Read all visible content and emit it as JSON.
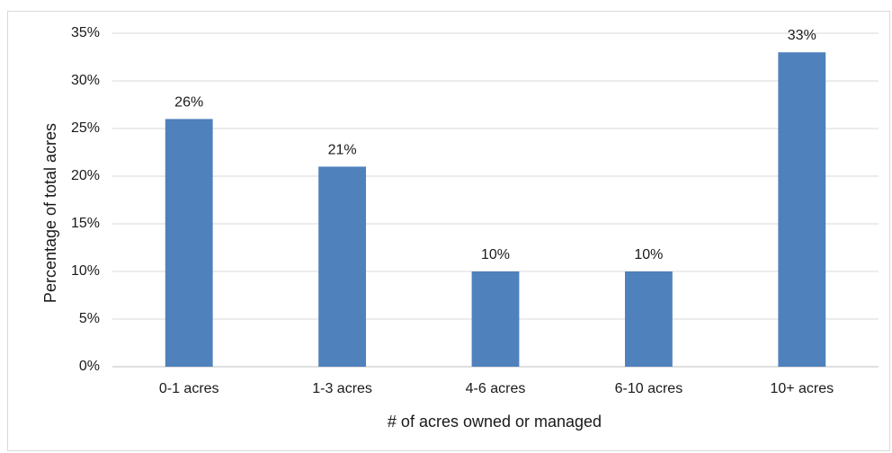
{
  "chart_data": {
    "type": "bar",
    "title": "",
    "xlabel": "# of acres owned or managed",
    "ylabel": "Percentage of total acres",
    "categories": [
      "0-1 acres",
      "1-3 acres",
      "4-6 acres",
      "6-10 acres",
      "10+ acres"
    ],
    "values": [
      26,
      21,
      10,
      10,
      33
    ],
    "data_labels": [
      "26%",
      "21%",
      "10%",
      "10%",
      "33%"
    ],
    "ylim": [
      0,
      35
    ],
    "yticks": [
      0,
      5,
      10,
      15,
      20,
      25,
      30,
      35
    ],
    "ytick_labels": [
      "0%",
      "5%",
      "10%",
      "15%",
      "20%",
      "25%",
      "30%",
      "35%"
    ],
    "grid": true,
    "legend": "none",
    "bar_color": "#4f81bd"
  }
}
